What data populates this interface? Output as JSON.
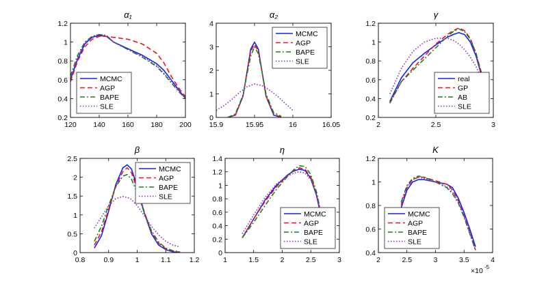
{
  "colors": {
    "blue": "#0b24fb",
    "red": "#fc0d1b",
    "green": "#148117",
    "purple": "#8b28c4",
    "axis": "#000000"
  },
  "chart_data": [
    {
      "type": "line",
      "title": "α₁",
      "xlim": [
        120,
        200
      ],
      "ylim": [
        0.2,
        1.2
      ],
      "xticks": [
        120,
        140,
        160,
        180,
        200
      ],
      "yticks": [
        0.2,
        0.4,
        0.6,
        0.8,
        1.0,
        1.2
      ],
      "xtick_labels": [
        "120",
        "140",
        "160",
        "180",
        "200"
      ],
      "ytick_labels": [
        "0.2",
        "0.4",
        "0.6",
        "0.8",
        "1",
        "1.2"
      ],
      "legend": {
        "position": "bottom-left",
        "labels": [
          "MCMC",
          "AGP",
          "BAPE",
          "SLE"
        ]
      },
      "series": [
        {
          "name": "MCMC",
          "style": "solid",
          "color": "blue",
          "x": [
            120,
            125,
            130,
            135,
            140,
            145,
            150,
            160,
            170,
            180,
            185,
            190,
            195,
            200
          ],
          "y": [
            0.6,
            0.82,
            0.98,
            1.05,
            1.07,
            1.06,
            1.0,
            0.93,
            0.86,
            0.77,
            0.7,
            0.6,
            0.5,
            0.4
          ]
        },
        {
          "name": "AGP",
          "style": "dashed",
          "color": "red",
          "x": [
            120,
            125,
            130,
            135,
            140,
            145,
            150,
            160,
            170,
            180,
            185,
            190,
            195,
            200
          ],
          "y": [
            0.58,
            0.8,
            0.95,
            1.03,
            1.06,
            1.06,
            1.05,
            1.03,
            0.98,
            0.88,
            0.78,
            0.64,
            0.52,
            0.42
          ]
        },
        {
          "name": "BAPE",
          "style": "dashdot",
          "color": "green",
          "x": [
            120,
            125,
            130,
            135,
            140,
            145,
            150,
            160,
            170,
            180,
            185,
            190,
            195,
            200
          ],
          "y": [
            0.64,
            0.86,
            1.0,
            1.06,
            1.08,
            1.07,
            1.0,
            0.92,
            0.84,
            0.74,
            0.66,
            0.57,
            0.48,
            0.4
          ]
        },
        {
          "name": "SLE",
          "style": "dotted",
          "color": "purple",
          "x": [
            120,
            125,
            130,
            135,
            140,
            145,
            150,
            160,
            170,
            180,
            185,
            190,
            195,
            200
          ],
          "y": [
            0.62,
            0.84,
            0.99,
            1.06,
            1.08,
            1.07,
            1.0,
            0.92,
            0.85,
            0.75,
            0.67,
            0.58,
            0.49,
            0.41
          ]
        }
      ]
    },
    {
      "type": "line",
      "title": "α₂",
      "xlim": [
        15.9,
        16.05
      ],
      "ylim": [
        0,
        4
      ],
      "xticks": [
        15.9,
        15.95,
        16.0,
        16.05
      ],
      "yticks": [
        0,
        1,
        2,
        3,
        4
      ],
      "xtick_labels": [
        "15.9",
        "15.95",
        "16",
        "16.05"
      ],
      "ytick_labels": [
        "0",
        "1",
        "2",
        "3",
        "4"
      ],
      "legend": {
        "position": "top-right",
        "labels": [
          "MCMC",
          "AGP",
          "BAPE",
          "SLE"
        ]
      },
      "series": [
        {
          "name": "MCMC",
          "style": "solid",
          "color": "blue",
          "x": [
            15.915,
            15.925,
            15.935,
            15.94,
            15.945,
            15.95,
            15.955,
            15.96,
            15.965,
            15.975,
            15.985
          ],
          "y": [
            0.0,
            0.1,
            0.9,
            1.9,
            2.9,
            3.2,
            2.9,
            1.9,
            0.9,
            0.1,
            0.0
          ]
        },
        {
          "name": "AGP",
          "style": "dashed",
          "color": "red",
          "x": [
            15.915,
            15.925,
            15.935,
            15.94,
            15.945,
            15.95,
            15.955,
            15.96,
            15.965,
            15.975,
            15.985
          ],
          "y": [
            0.0,
            0.1,
            0.9,
            1.9,
            2.8,
            3.1,
            2.8,
            1.9,
            0.9,
            0.15,
            0.0
          ]
        },
        {
          "name": "BAPE",
          "style": "dashdot",
          "color": "green",
          "x": [
            15.915,
            15.925,
            15.935,
            15.94,
            15.945,
            15.95,
            15.955,
            15.96,
            15.965,
            15.975,
            15.985
          ],
          "y": [
            0.0,
            0.15,
            0.95,
            1.8,
            2.6,
            3.0,
            2.7,
            1.9,
            1.0,
            0.2,
            0.05
          ]
        },
        {
          "name": "SLE",
          "style": "dotted",
          "color": "purple",
          "x": [
            15.9,
            15.91,
            15.92,
            15.93,
            15.94,
            15.95,
            15.96,
            15.97,
            15.98,
            15.99,
            16.0
          ],
          "y": [
            0.3,
            0.5,
            0.75,
            1.05,
            1.3,
            1.42,
            1.35,
            1.15,
            0.9,
            0.6,
            0.3
          ]
        }
      ]
    },
    {
      "type": "line",
      "title": "γ",
      "xlim": [
        2,
        3
      ],
      "ylim": [
        0.2,
        1.2
      ],
      "xticks": [
        2,
        2.5,
        3
      ],
      "yticks": [
        0.2,
        0.4,
        0.6,
        0.8,
        1.0,
        1.2
      ],
      "xtick_labels": [
        "2",
        "2.5",
        "3"
      ],
      "ytick_labels": [
        "0.2",
        "0.4",
        "0.6",
        "0.8",
        "1",
        "1.2"
      ],
      "legend": {
        "position": "bottom-right",
        "labels": [
          "real",
          "GP",
          "AB",
          "SLE"
        ]
      },
      "series": [
        {
          "name": "real",
          "style": "solid",
          "color": "blue",
          "x": [
            2.1,
            2.2,
            2.3,
            2.4,
            2.5,
            2.6,
            2.65,
            2.7,
            2.75,
            2.8,
            2.85,
            2.9
          ],
          "y": [
            0.37,
            0.62,
            0.78,
            0.88,
            0.97,
            1.05,
            1.08,
            1.1,
            1.08,
            1.0,
            0.85,
            0.63
          ]
        },
        {
          "name": "GP",
          "style": "dashed",
          "color": "red",
          "x": [
            2.1,
            2.2,
            2.3,
            2.4,
            2.5,
            2.6,
            2.65,
            2.7,
            2.75,
            2.8,
            2.85,
            2.9
          ],
          "y": [
            0.36,
            0.58,
            0.72,
            0.85,
            0.98,
            1.08,
            1.12,
            1.15,
            1.12,
            1.04,
            0.88,
            0.66
          ]
        },
        {
          "name": "AB",
          "style": "dashdot",
          "color": "green",
          "x": [
            2.1,
            2.2,
            2.3,
            2.4,
            2.5,
            2.6,
            2.65,
            2.7,
            2.75,
            2.8,
            2.85,
            2.9
          ],
          "y": [
            0.35,
            0.58,
            0.7,
            0.82,
            0.94,
            1.06,
            1.11,
            1.14,
            1.11,
            1.03,
            0.88,
            0.64
          ]
        },
        {
          "name": "SLE",
          "style": "dotted",
          "color": "purple",
          "x": [
            2.1,
            2.2,
            2.3,
            2.4,
            2.5,
            2.6,
            2.65,
            2.7,
            2.75,
            2.8,
            2.85,
            2.9
          ],
          "y": [
            0.45,
            0.72,
            0.9,
            1.0,
            1.04,
            1.04,
            1.02,
            0.98,
            0.92,
            0.84,
            0.74,
            0.6
          ]
        }
      ]
    },
    {
      "type": "line",
      "title": "β",
      "xlim": [
        0.8,
        1.2
      ],
      "ylim": [
        0,
        2.5
      ],
      "xticks": [
        0.8,
        0.9,
        1.0,
        1.1,
        1.2
      ],
      "yticks": [
        0,
        0.5,
        1.0,
        1.5,
        2.0,
        2.5
      ],
      "xtick_labels": [
        "0.8",
        "0.9",
        "1",
        "1.1",
        "1.2"
      ],
      "ytick_labels": [
        "0",
        "0.5",
        "1",
        "1.5",
        "2",
        "2.5"
      ],
      "legend": {
        "position": "top-right",
        "labels": [
          "MCMC",
          "AGP",
          "BAPE",
          "SLE"
        ]
      },
      "series": [
        {
          "name": "MCMC",
          "style": "solid",
          "color": "blue",
          "x": [
            0.85,
            0.875,
            0.9,
            0.925,
            0.95,
            0.965,
            0.98,
            1.0,
            1.025,
            1.05,
            1.075,
            1.1,
            1.125,
            1.15
          ],
          "y": [
            0.12,
            0.45,
            1.1,
            1.8,
            2.25,
            2.33,
            2.22,
            1.75,
            1.05,
            0.5,
            0.2,
            0.08,
            0.02,
            0.0
          ]
        },
        {
          "name": "AGP",
          "style": "dashed",
          "color": "red",
          "x": [
            0.85,
            0.875,
            0.9,
            0.925,
            0.95,
            0.965,
            0.98,
            1.0,
            1.025,
            1.05,
            1.075,
            1.1,
            1.125,
            1.15
          ],
          "y": [
            0.2,
            0.55,
            1.15,
            1.75,
            2.15,
            2.25,
            2.12,
            1.7,
            1.08,
            0.55,
            0.25,
            0.1,
            0.04,
            0.01
          ]
        },
        {
          "name": "BAPE",
          "style": "dashdot",
          "color": "green",
          "x": [
            0.85,
            0.875,
            0.9,
            0.925,
            0.95,
            0.965,
            0.98,
            1.0,
            1.025,
            1.05,
            1.075,
            1.1,
            1.125,
            1.15
          ],
          "y": [
            0.3,
            0.7,
            1.25,
            1.75,
            2.03,
            2.07,
            1.95,
            1.6,
            1.05,
            0.58,
            0.28,
            0.12,
            0.05,
            0.02
          ]
        },
        {
          "name": "SLE",
          "style": "dotted",
          "color": "purple",
          "x": [
            0.85,
            0.875,
            0.9,
            0.925,
            0.95,
            0.975,
            1.0,
            1.025,
            1.05,
            1.075,
            1.1,
            1.125,
            1.15
          ],
          "y": [
            0.65,
            0.95,
            1.25,
            1.43,
            1.49,
            1.44,
            1.25,
            0.98,
            0.7,
            0.47,
            0.3,
            0.2,
            0.15
          ]
        }
      ]
    },
    {
      "type": "line",
      "title": "η",
      "xlim": [
        1,
        3
      ],
      "ylim": [
        0,
        1.4
      ],
      "xticks": [
        1,
        1.5,
        2,
        2.5,
        3
      ],
      "yticks": [
        0,
        0.2,
        0.4,
        0.6,
        0.8,
        1.0,
        1.2,
        1.4
      ],
      "xtick_labels": [
        "1",
        "1.5",
        "2",
        "2.5",
        "3"
      ],
      "ytick_labels": [
        "0",
        "0.2",
        "0.4",
        "0.6",
        "0.8",
        "1",
        "1.2",
        "1.4"
      ],
      "legend": {
        "position": "bottom-right",
        "labels": [
          "MCMC",
          "AGP",
          "BAPE",
          "SLE"
        ]
      },
      "series": [
        {
          "name": "MCMC",
          "style": "solid",
          "color": "blue",
          "x": [
            1.3,
            1.5,
            1.7,
            1.9,
            2.1,
            2.2,
            2.3,
            2.4,
            2.5,
            2.6,
            2.65,
            2.7
          ],
          "y": [
            0.22,
            0.5,
            0.78,
            1.0,
            1.16,
            1.21,
            1.24,
            1.22,
            1.1,
            0.85,
            0.65,
            0.4
          ]
        },
        {
          "name": "AGP",
          "style": "dashed",
          "color": "red",
          "x": [
            1.3,
            1.5,
            1.7,
            1.9,
            2.1,
            2.2,
            2.3,
            2.4,
            2.5,
            2.6,
            2.65,
            2.7
          ],
          "y": [
            0.22,
            0.5,
            0.76,
            0.98,
            1.15,
            1.22,
            1.26,
            1.24,
            1.12,
            0.87,
            0.67,
            0.42
          ]
        },
        {
          "name": "BAPE",
          "style": "dashdot",
          "color": "green",
          "x": [
            1.3,
            1.5,
            1.7,
            1.9,
            2.1,
            2.2,
            2.3,
            2.4,
            2.5,
            2.6,
            2.65,
            2.7
          ],
          "y": [
            0.22,
            0.45,
            0.7,
            0.94,
            1.14,
            1.23,
            1.29,
            1.28,
            1.16,
            0.9,
            0.7,
            0.44
          ]
        },
        {
          "name": "SLE",
          "style": "dotted",
          "color": "purple",
          "x": [
            1.3,
            1.5,
            1.7,
            1.9,
            2.1,
            2.2,
            2.3,
            2.4,
            2.5,
            2.6,
            2.65,
            2.7
          ],
          "y": [
            0.28,
            0.56,
            0.82,
            1.02,
            1.14,
            1.18,
            1.2,
            1.18,
            1.08,
            0.86,
            0.68,
            0.45
          ]
        }
      ]
    },
    {
      "type": "line",
      "title": "K",
      "xlim": [
        2,
        4
      ],
      "ylim": [
        0.4,
        1.2
      ],
      "xticks": [
        2,
        2.5,
        3,
        3.5,
        4
      ],
      "yticks": [
        0.4,
        0.6,
        0.8,
        1.0,
        1.2
      ],
      "xtick_labels": [
        "2",
        "2.5",
        "3",
        "3.5",
        "4"
      ],
      "ytick_labels": [
        "0.4",
        "0.6",
        "0.8",
        "1",
        "1.2"
      ],
      "exponent_label": "×10",
      "exponent_power": "-5",
      "legend": {
        "position": "bottom-left",
        "labels": [
          "MCMC",
          "AGP",
          "BAPE",
          "SLE"
        ]
      },
      "series": [
        {
          "name": "MCMC",
          "style": "solid",
          "color": "blue",
          "x": [
            2.4,
            2.5,
            2.6,
            2.7,
            2.8,
            3.0,
            3.2,
            3.3,
            3.4,
            3.5,
            3.6,
            3.7
          ],
          "y": [
            0.78,
            0.93,
            1.0,
            1.02,
            1.02,
            1.0,
            0.98,
            0.95,
            0.86,
            0.74,
            0.6,
            0.45
          ]
        },
        {
          "name": "AGP",
          "style": "dashed",
          "color": "red",
          "x": [
            2.4,
            2.5,
            2.6,
            2.7,
            2.8,
            3.0,
            3.2,
            3.3,
            3.4,
            3.5,
            3.6,
            3.7
          ],
          "y": [
            0.8,
            0.95,
            1.02,
            1.04,
            1.04,
            1.01,
            0.98,
            0.93,
            0.84,
            0.71,
            0.57,
            0.42
          ]
        },
        {
          "name": "BAPE",
          "style": "dashdot",
          "color": "green",
          "x": [
            2.4,
            2.5,
            2.6,
            2.7,
            2.8,
            3.0,
            3.2,
            3.3,
            3.4,
            3.5,
            3.6,
            3.7
          ],
          "y": [
            0.83,
            0.97,
            1.03,
            1.05,
            1.04,
            1.0,
            0.95,
            0.9,
            0.82,
            0.7,
            0.56,
            0.42
          ]
        },
        {
          "name": "SLE",
          "style": "dotted",
          "color": "purple",
          "x": [
            2.4,
            2.5,
            2.6,
            2.7,
            2.8,
            3.0,
            3.2,
            3.3,
            3.4,
            3.5,
            3.6,
            3.7
          ],
          "y": [
            0.82,
            0.96,
            1.02,
            1.04,
            1.03,
            1.0,
            0.96,
            0.91,
            0.83,
            0.71,
            0.57,
            0.42
          ]
        }
      ]
    }
  ]
}
